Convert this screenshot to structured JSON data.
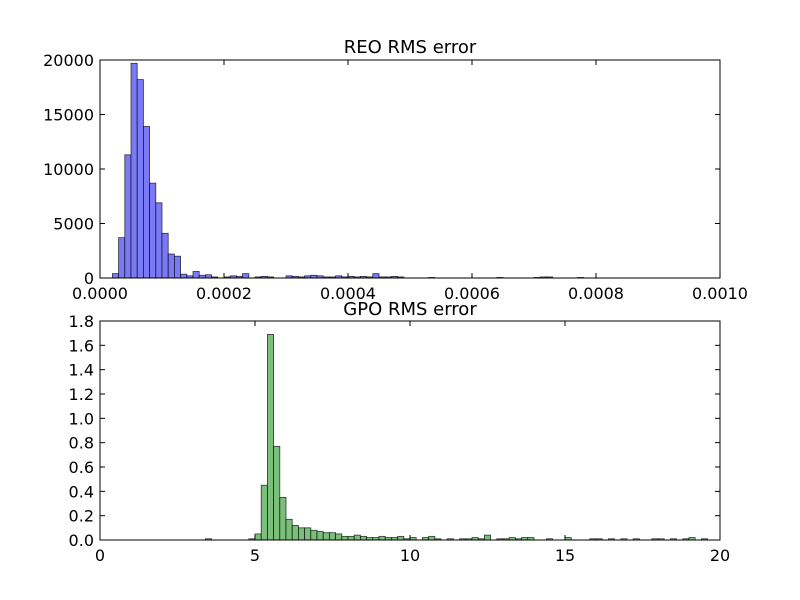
{
  "chart_data": [
    {
      "type": "bar",
      "title": "REO RMS error",
      "xlabel": "",
      "ylabel": "",
      "xlim": [
        0,
        0.001
      ],
      "ylim": [
        0,
        20000
      ],
      "xticks": [
        "0.0000",
        "0.0002",
        "0.0004",
        "0.0006",
        "0.0008",
        "0.0010"
      ],
      "yticks": [
        "0",
        "5000",
        "10000",
        "15000",
        "20000"
      ],
      "color": "#7a7af7",
      "bin_width": 1e-05,
      "series": [
        {
          "values": [
            [
              2e-05,
              400
            ],
            [
              3e-05,
              3700
            ],
            [
              4e-05,
              11300
            ],
            [
              5e-05,
              19700
            ],
            [
              6e-05,
              18200
            ],
            [
              7e-05,
              13900
            ],
            [
              8e-05,
              8700
            ],
            [
              9e-05,
              6900
            ],
            [
              0.0001,
              4100
            ],
            [
              0.00011,
              2200
            ],
            [
              0.00012,
              2000
            ],
            [
              0.00013,
              350
            ],
            [
              0.00014,
              200
            ],
            [
              0.00015,
              600
            ],
            [
              0.00016,
              250
            ],
            [
              0.00017,
              300
            ],
            [
              0.00018,
              100
            ],
            [
              0.0002,
              100
            ],
            [
              0.00021,
              200
            ],
            [
              0.00022,
              150
            ],
            [
              0.00023,
              400
            ],
            [
              0.00025,
              100
            ],
            [
              0.00026,
              150
            ],
            [
              0.00027,
              100
            ],
            [
              0.0003,
              200
            ],
            [
              0.00031,
              150
            ],
            [
              0.00032,
              100
            ],
            [
              0.00033,
              200
            ],
            [
              0.00034,
              250
            ],
            [
              0.00035,
              200
            ],
            [
              0.00036,
              100
            ],
            [
              0.00037,
              100
            ],
            [
              0.00038,
              200
            ],
            [
              0.00039,
              100
            ],
            [
              0.0004,
              150
            ],
            [
              0.00041,
              100
            ],
            [
              0.00042,
              150
            ],
            [
              0.00043,
              100
            ],
            [
              0.00044,
              400
            ],
            [
              0.00045,
              100
            ],
            [
              0.00046,
              100
            ],
            [
              0.00047,
              150
            ],
            [
              0.00048,
              100
            ],
            [
              0.00053,
              50
            ],
            [
              0.00064,
              50
            ],
            [
              0.0007,
              50
            ],
            [
              0.00071,
              100
            ],
            [
              0.00072,
              100
            ],
            [
              0.00077,
              50
            ]
          ]
        }
      ]
    },
    {
      "type": "bar",
      "title": "GPO RMS error",
      "xlabel": "",
      "ylabel": "",
      "xlim": [
        0,
        20
      ],
      "ylim": [
        0,
        1.8
      ],
      "xticks": [
        "0",
        "5",
        "10",
        "15",
        "20"
      ],
      "yticks": [
        "0.0",
        "0.2",
        "0.4",
        "0.6",
        "0.8",
        "1.0",
        "1.2",
        "1.4",
        "1.6",
        "1.8"
      ],
      "color": "#7abf7a",
      "bin_width": 0.2,
      "series": [
        {
          "values": [
            [
              3.4,
              0.01
            ],
            [
              4.8,
              0.01
            ],
            [
              5.0,
              0.05
            ],
            [
              5.2,
              0.45
            ],
            [
              5.4,
              1.69
            ],
            [
              5.6,
              0.77
            ],
            [
              5.8,
              0.35
            ],
            [
              6.0,
              0.17
            ],
            [
              6.2,
              0.12
            ],
            [
              6.4,
              0.1
            ],
            [
              6.6,
              0.1
            ],
            [
              6.8,
              0.08
            ],
            [
              7.0,
              0.07
            ],
            [
              7.2,
              0.06
            ],
            [
              7.4,
              0.06
            ],
            [
              7.6,
              0.05
            ],
            [
              7.8,
              0.03
            ],
            [
              8.0,
              0.03
            ],
            [
              8.2,
              0.04
            ],
            [
              8.4,
              0.03
            ],
            [
              8.6,
              0.02
            ],
            [
              8.8,
              0.02
            ],
            [
              9.0,
              0.03
            ],
            [
              9.2,
              0.02
            ],
            [
              9.4,
              0.02
            ],
            [
              9.6,
              0.03
            ],
            [
              9.8,
              0.01
            ],
            [
              10.0,
              0.02
            ],
            [
              10.4,
              0.02
            ],
            [
              10.6,
              0.03
            ],
            [
              10.8,
              0.01
            ],
            [
              11.2,
              0.01
            ],
            [
              11.6,
              0.01
            ],
            [
              11.8,
              0.01
            ],
            [
              12.0,
              0.02
            ],
            [
              12.2,
              0.01
            ],
            [
              12.4,
              0.04
            ],
            [
              12.8,
              0.01
            ],
            [
              13.0,
              0.01
            ],
            [
              13.2,
              0.02
            ],
            [
              13.4,
              0.01
            ],
            [
              13.6,
              0.02
            ],
            [
              13.8,
              0.02
            ],
            [
              14.4,
              0.01
            ],
            [
              15.0,
              0.02
            ],
            [
              15.8,
              0.01
            ],
            [
              16.0,
              0.01
            ],
            [
              16.4,
              0.01
            ],
            [
              16.8,
              0.01
            ],
            [
              17.2,
              0.01
            ],
            [
              17.8,
              0.01
            ],
            [
              18.0,
              0.01
            ],
            [
              18.4,
              0.01
            ],
            [
              18.8,
              0.01
            ],
            [
              19.0,
              0.02
            ],
            [
              19.4,
              0.01
            ]
          ]
        }
      ]
    }
  ]
}
